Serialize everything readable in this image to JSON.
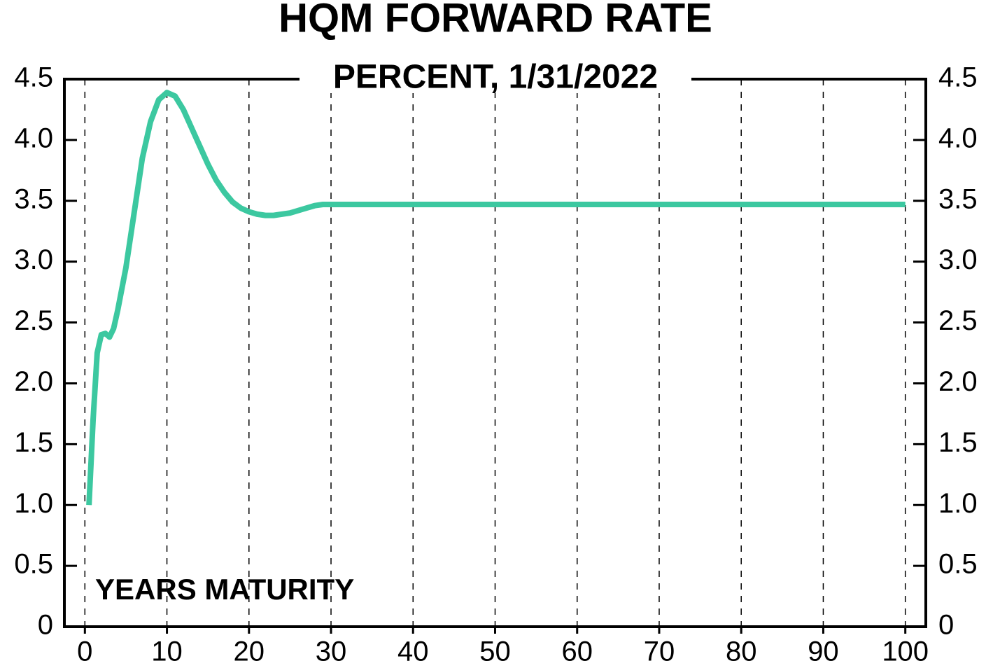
{
  "chart_data": {
    "type": "line",
    "title": "HQM FORWARD RATE",
    "subtitle": "PERCENT, 1/31/2022",
    "annotation": "YEARS MATURITY",
    "x": [
      0.5,
      1,
      1.5,
      2,
      2.5,
      3,
      3.5,
      4,
      5,
      6,
      7,
      8,
      9,
      10,
      11,
      12,
      13,
      14,
      15,
      16,
      17,
      18,
      19,
      20,
      21,
      22,
      23,
      24,
      25,
      26,
      27,
      28,
      29,
      30,
      40,
      50,
      60,
      70,
      80,
      90,
      100
    ],
    "series": [
      {
        "color": "#3cc8a0",
        "values": [
          1.0,
          1.7,
          2.25,
          2.4,
          2.41,
          2.38,
          2.45,
          2.6,
          2.95,
          3.4,
          3.85,
          4.15,
          4.33,
          4.39,
          4.36,
          4.25,
          4.1,
          3.95,
          3.8,
          3.67,
          3.57,
          3.49,
          3.44,
          3.41,
          3.39,
          3.38,
          3.38,
          3.39,
          3.4,
          3.42,
          3.44,
          3.46,
          3.47,
          3.47,
          3.47,
          3.47,
          3.47,
          3.47,
          3.47,
          3.47,
          3.47
        ]
      }
    ],
    "xlim": [
      -2.5,
      102.5
    ],
    "xticks": [
      0,
      10,
      20,
      30,
      40,
      50,
      60,
      70,
      80,
      90,
      100
    ],
    "ylim": [
      0,
      4.5
    ],
    "yticks": [
      0,
      0.5,
      {
        "value": 1,
        "label": "1.0"
      },
      1.5,
      {
        "value": 2,
        "label": "2.0"
      },
      2.5,
      {
        "value": 3,
        "label": "3.0"
      },
      3.5,
      {
        "value": 4,
        "label": "4.0"
      },
      4.5
    ],
    "y2lim": [
      0,
      4.5
    ],
    "y2ticks": [
      0,
      0.5,
      {
        "value": 1,
        "label": "1.0"
      },
      1.5,
      {
        "value": 2,
        "label": "2.0"
      },
      2.5,
      {
        "value": 3,
        "label": "3.0"
      },
      3.5,
      {
        "value": 4,
        "label": "4.0"
      },
      4.5
    ],
    "grid": "x"
  }
}
